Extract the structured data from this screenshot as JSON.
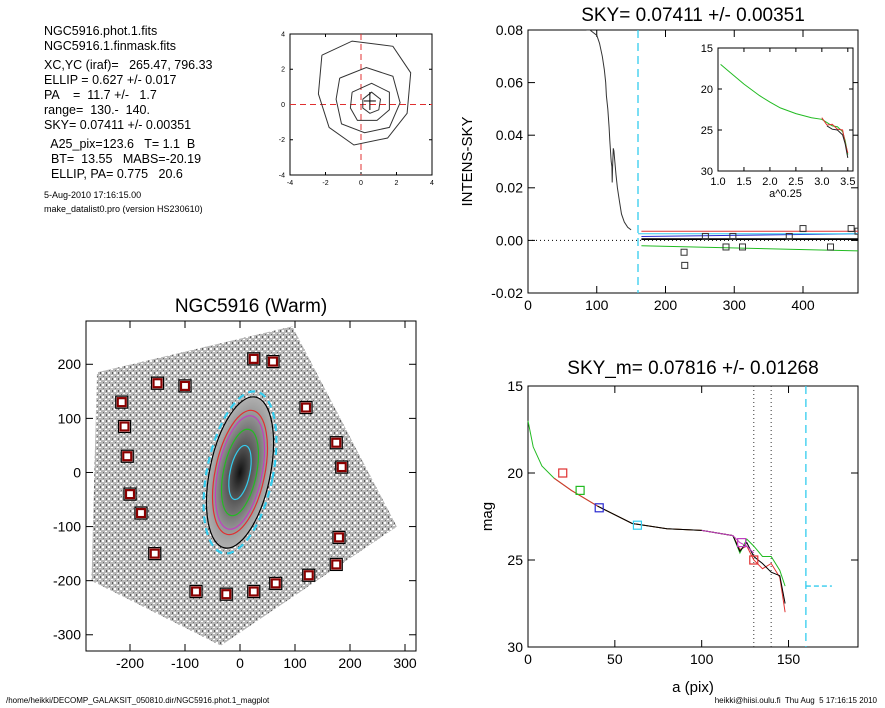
{
  "info": {
    "lines": [
      "NGC5916.phot.1.fits",
      "NGC5916.1.finmask.fits",
      "",
      "XC,YC (iraf)=   265.47, 796.33",
      "ELLIP = 0.627 +/- 0.017",
      "PA    =  11.7 +/-   1.7",
      "range=  130.-  140.",
      "SKY= 0.07411 +/- 0.00351",
      "",
      "  A25_pix=123.6   T= 1.1  B",
      "  BT=  13.55   MABS=-20.19",
      "  ELLIP, PA= 0.775   20.6"
    ],
    "date": "5-Aug-2010 17:16:15.00",
    "program": "make_datalist0.pro (version HS230610)"
  },
  "footer": {
    "left": "/home/heikki/DECOMP_GALAKSIT_050810.dir/NGC5916.phot.1_magplot",
    "right": "heikki@hiisi.oulu.fi  Thu Aug  5 17:16:15 2010"
  },
  "colors": {
    "black": "#000000",
    "red": "#e03030",
    "green": "#22bb22",
    "blue": "#2a2ad0",
    "cyan": "#33ccee",
    "magenta": "#c040c0",
    "darkred": "#8b0000",
    "grey": "#888888"
  },
  "chart_data": [
    {
      "id": "centre",
      "type": "contour",
      "title": "",
      "xlim": [
        -4,
        4
      ],
      "ylim": [
        -4,
        4
      ],
      "xticks": [
        -4,
        -2,
        0,
        2,
        4
      ],
      "yticks": [
        -4,
        -2,
        0,
        2,
        4
      ],
      "crosshair": [
        0,
        0
      ],
      "contours": [
        [
          [
            -2.2,
            2.8
          ],
          [
            -0.5,
            3.6
          ],
          [
            1.8,
            3.3
          ],
          [
            2.8,
            1.8
          ],
          [
            2.6,
            -0.5
          ],
          [
            1.5,
            -1.9
          ],
          [
            -0.4,
            -2.3
          ],
          [
            -1.8,
            -1.3
          ],
          [
            -2.4,
            0.6
          ]
        ],
        [
          [
            -1.2,
            1.5
          ],
          [
            0.3,
            2.1
          ],
          [
            1.8,
            1.6
          ],
          [
            2.2,
            0.1
          ],
          [
            1.6,
            -1.3
          ],
          [
            0.2,
            -1.6
          ],
          [
            -1.1,
            -1.1
          ],
          [
            -1.4,
            0.3
          ]
        ],
        [
          [
            -0.5,
            0.7
          ],
          [
            0.6,
            1.2
          ],
          [
            1.6,
            0.7
          ],
          [
            1.6,
            -0.3
          ],
          [
            0.9,
            -0.9
          ],
          [
            -0.2,
            -0.9
          ],
          [
            -0.6,
            -0.2
          ]
        ],
        [
          [
            0.1,
            0.3
          ],
          [
            0.6,
            0.7
          ],
          [
            1.1,
            0.3
          ],
          [
            1.0,
            -0.3
          ],
          [
            0.5,
            -0.5
          ],
          [
            0.1,
            -0.2
          ]
        ]
      ]
    },
    {
      "id": "sky",
      "type": "line",
      "title": "SKY= 0.07411 +/- 0.00351",
      "xlabel": "",
      "ylabel": "INTENS-SKY",
      "xlim": [
        0,
        480
      ],
      "ylim": [
        -0.02,
        0.08
      ],
      "xticks": [
        0,
        100,
        200,
        300,
        400
      ],
      "yticks": [
        -0.02,
        0.0,
        0.02,
        0.04,
        0.06,
        0.08
      ],
      "ytick_labels": [
        "-0.02",
        "0.00",
        "0.02",
        "0.04",
        "0.06",
        "0.08"
      ],
      "vline": 160,
      "profile": {
        "x": [
          85,
          90,
          95,
          100,
          104,
          108,
          111,
          113,
          114,
          116,
          118,
          119,
          120,
          121,
          122,
          122.5,
          123,
          124,
          125,
          127,
          128,
          130,
          133,
          136,
          140,
          145,
          150
        ],
        "y": [
          0.08,
          0.08,
          0.079,
          0.078,
          0.075,
          0.07,
          0.065,
          0.06,
          0.055,
          0.05,
          0.043,
          0.038,
          0.034,
          0.03,
          0.028,
          0.022,
          0.028,
          0.035,
          0.034,
          0.028,
          0.025,
          0.02,
          0.015,
          0.01,
          0.007,
          0.005,
          0.004
        ]
      },
      "series": [
        {
          "color": "red",
          "x": [
            165,
            480
          ],
          "y": [
            0.0035,
            0.0035
          ]
        },
        {
          "color": "blue",
          "x": [
            165,
            480
          ],
          "y": [
            0.0015,
            0.0025
          ]
        },
        {
          "color": "cyan",
          "x": [
            160,
            480
          ],
          "y": [
            0.0025,
            0.0025
          ]
        },
        {
          "color": "green",
          "x": [
            165,
            480
          ],
          "y": [
            -0.002,
            -0.004
          ]
        },
        {
          "color": "black",
          "x": [
            165,
            480
          ],
          "y": [
            0.0005,
            0.0005
          ]
        }
      ],
      "squares": {
        "x": [
          227,
          228,
          258,
          288,
          298,
          312,
          380,
          400,
          440,
          470,
          480
        ],
        "y": [
          -0.0045,
          -0.0095,
          0.0015,
          -0.0025,
          0.0015,
          -0.0025,
          0.0015,
          0.0045,
          -0.0025,
          0.0045,
          0.0035
        ]
      },
      "inset": {
        "xlabel": "a^0.25",
        "xlim": [
          1.0,
          3.6
        ],
        "ylim": [
          15,
          30
        ],
        "xticks": [
          1.0,
          1.5,
          2.0,
          2.5,
          3.0,
          3.5
        ],
        "yticks": [
          15,
          20,
          25,
          30
        ],
        "x": [
          1.05,
          1.2,
          1.5,
          1.8,
          2.0,
          2.2,
          2.5,
          2.8,
          3.0,
          3.1,
          3.2,
          3.3,
          3.4,
          3.45,
          3.5
        ],
        "y": [
          17.0,
          17.8,
          19.4,
          20.8,
          21.6,
          22.3,
          23.0,
          23.5,
          23.7,
          24.1,
          24.5,
          24.6,
          25.2,
          26.3,
          28.0
        ]
      }
    },
    {
      "id": "image",
      "type": "image",
      "title": "NGC5916 (Warm)",
      "xlim": [
        -280,
        320
      ],
      "ylim": [
        -330,
        280
      ],
      "xticks": [
        -200,
        -100,
        0,
        100,
        200,
        300
      ],
      "yticks": [
        -300,
        -200,
        -100,
        0,
        100,
        200
      ],
      "mask_squares": [
        [
          -100,
          160
        ],
        [
          -150,
          165
        ],
        [
          -215,
          130
        ],
        [
          -210,
          85
        ],
        [
          -205,
          30
        ],
        [
          -200,
          -40
        ],
        [
          -180,
          -75
        ],
        [
          -155,
          -150
        ],
        [
          -80,
          -220
        ],
        [
          -25,
          -225
        ],
        [
          25,
          -220
        ],
        [
          65,
          -205
        ],
        [
          125,
          -190
        ],
        [
          175,
          -170
        ],
        [
          180,
          -120
        ],
        [
          185,
          10
        ],
        [
          175,
          55
        ],
        [
          120,
          120
        ],
        [
          60,
          205
        ],
        [
          25,
          210
        ]
      ],
      "ellipses": [
        {
          "a": 60,
          "b": 150,
          "color": "cyan",
          "dashed": true
        },
        {
          "a": 55,
          "b": 140,
          "color": "black",
          "dashed": false
        },
        {
          "a": 45,
          "b": 115,
          "color": "red",
          "dashed": false
        },
        {
          "a": 40,
          "b": 105,
          "color": "magenta",
          "dashed": false
        },
        {
          "a": 30,
          "b": 80,
          "color": "green",
          "dashed": false
        },
        {
          "a": 18,
          "b": 50,
          "color": "cyan",
          "dashed": false
        }
      ],
      "pa_deg": 11.7
    },
    {
      "id": "mag",
      "type": "line",
      "title": "SKY_m=  0.07816 +/- 0.01268",
      "xlabel": "a (pix)",
      "ylabel": "mag",
      "xlim": [
        0,
        190
      ],
      "ylim": [
        30,
        15
      ],
      "xticks": [
        0,
        50,
        100,
        150
      ],
      "yticks": [
        15,
        20,
        25,
        30
      ],
      "vlines_dotted": [
        130,
        140
      ],
      "vline_dashed": 160,
      "sky_mark": {
        "x": [
          160,
          175
        ],
        "y": [
          26.5,
          26.5
        ]
      },
      "series": [
        {
          "color": "green",
          "x": [
            0,
            3,
            8,
            15,
            25,
            40,
            60,
            80,
            100,
            118,
            122,
            126,
            130,
            135,
            140,
            145,
            148
          ],
          "y": [
            17.0,
            18.5,
            19.6,
            20.3,
            21.0,
            21.9,
            22.9,
            23.2,
            23.3,
            23.6,
            24.6,
            23.8,
            24.2,
            24.8,
            24.8,
            25.6,
            26.5
          ]
        },
        {
          "color": "red",
          "x": [
            15,
            25,
            40,
            60,
            80,
            100,
            118,
            122,
            126,
            130,
            135,
            140,
            145,
            148
          ],
          "y": [
            20.3,
            21.0,
            21.9,
            22.9,
            23.2,
            23.3,
            23.6,
            24.4,
            24.2,
            25.0,
            25.5,
            25.2,
            26.0,
            28.0
          ]
        },
        {
          "color": "black",
          "x": [
            40,
            60,
            80,
            100,
            118,
            122,
            126,
            130,
            135,
            140,
            145,
            148
          ],
          "y": [
            21.9,
            22.9,
            23.2,
            23.3,
            23.6,
            24.5,
            24.0,
            24.8,
            25.2,
            25.7,
            25.9,
            27.5
          ]
        },
        {
          "color": "magenta",
          "x": [
            100,
            118,
            122,
            126,
            130
          ],
          "y": [
            23.3,
            23.6,
            24.0,
            24.2,
            24.6
          ]
        }
      ],
      "squares": [
        {
          "color": "red",
          "x": 20,
          "y": 20.0
        },
        {
          "color": "green",
          "x": 30,
          "y": 21.0
        },
        {
          "color": "blue",
          "x": 41,
          "y": 22.0
        },
        {
          "color": "cyan",
          "x": 63,
          "y": 23.0
        },
        {
          "color": "magenta",
          "x": 123,
          "y": 24.0
        },
        {
          "color": "red",
          "x": 130,
          "y": 25.0
        }
      ]
    }
  ]
}
